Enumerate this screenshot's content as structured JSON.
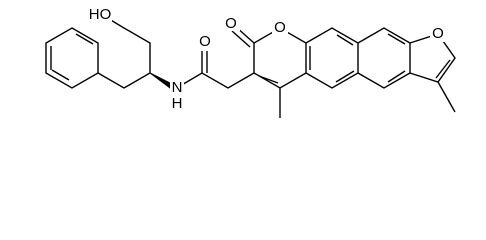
{
  "atoms": [
    {
      "label": "HO"
    },
    {
      "label": "N"
    },
    {
      "label": "H"
    },
    {
      "label": "O"
    },
    {
      "label": "O"
    },
    {
      "label": "O"
    },
    {
      "label": "O"
    }
  ]
}
